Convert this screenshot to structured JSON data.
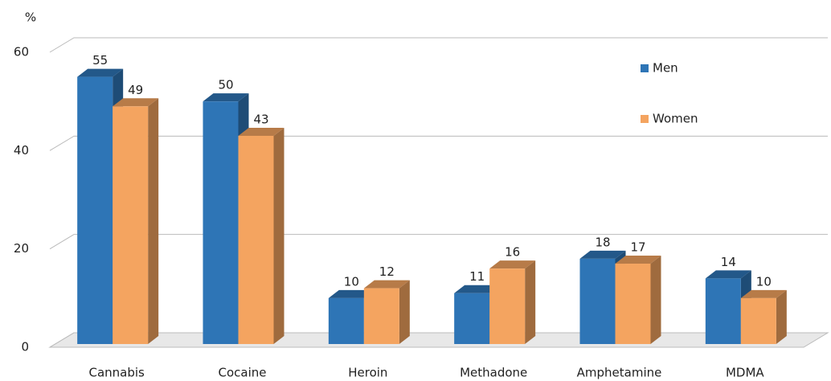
{
  "chart_data": {
    "type": "bar3d",
    "y_label": "%",
    "categories": [
      "Cannabis",
      "Cocaine",
      "Heroin",
      "Methadone",
      "Amphetamine",
      "MDMA"
    ],
    "series": [
      {
        "name": "Men",
        "color": "#2e75b6",
        "values": [
          55,
          50,
          10,
          11,
          18,
          14
        ]
      },
      {
        "name": "Women",
        "color": "#f4a460",
        "values": [
          49,
          43,
          12,
          16,
          17,
          10
        ]
      }
    ],
    "ylim": [
      0,
      60
    ],
    "yticks": [
      0,
      20,
      40,
      60
    ],
    "grid": true,
    "legend": "upper right"
  }
}
